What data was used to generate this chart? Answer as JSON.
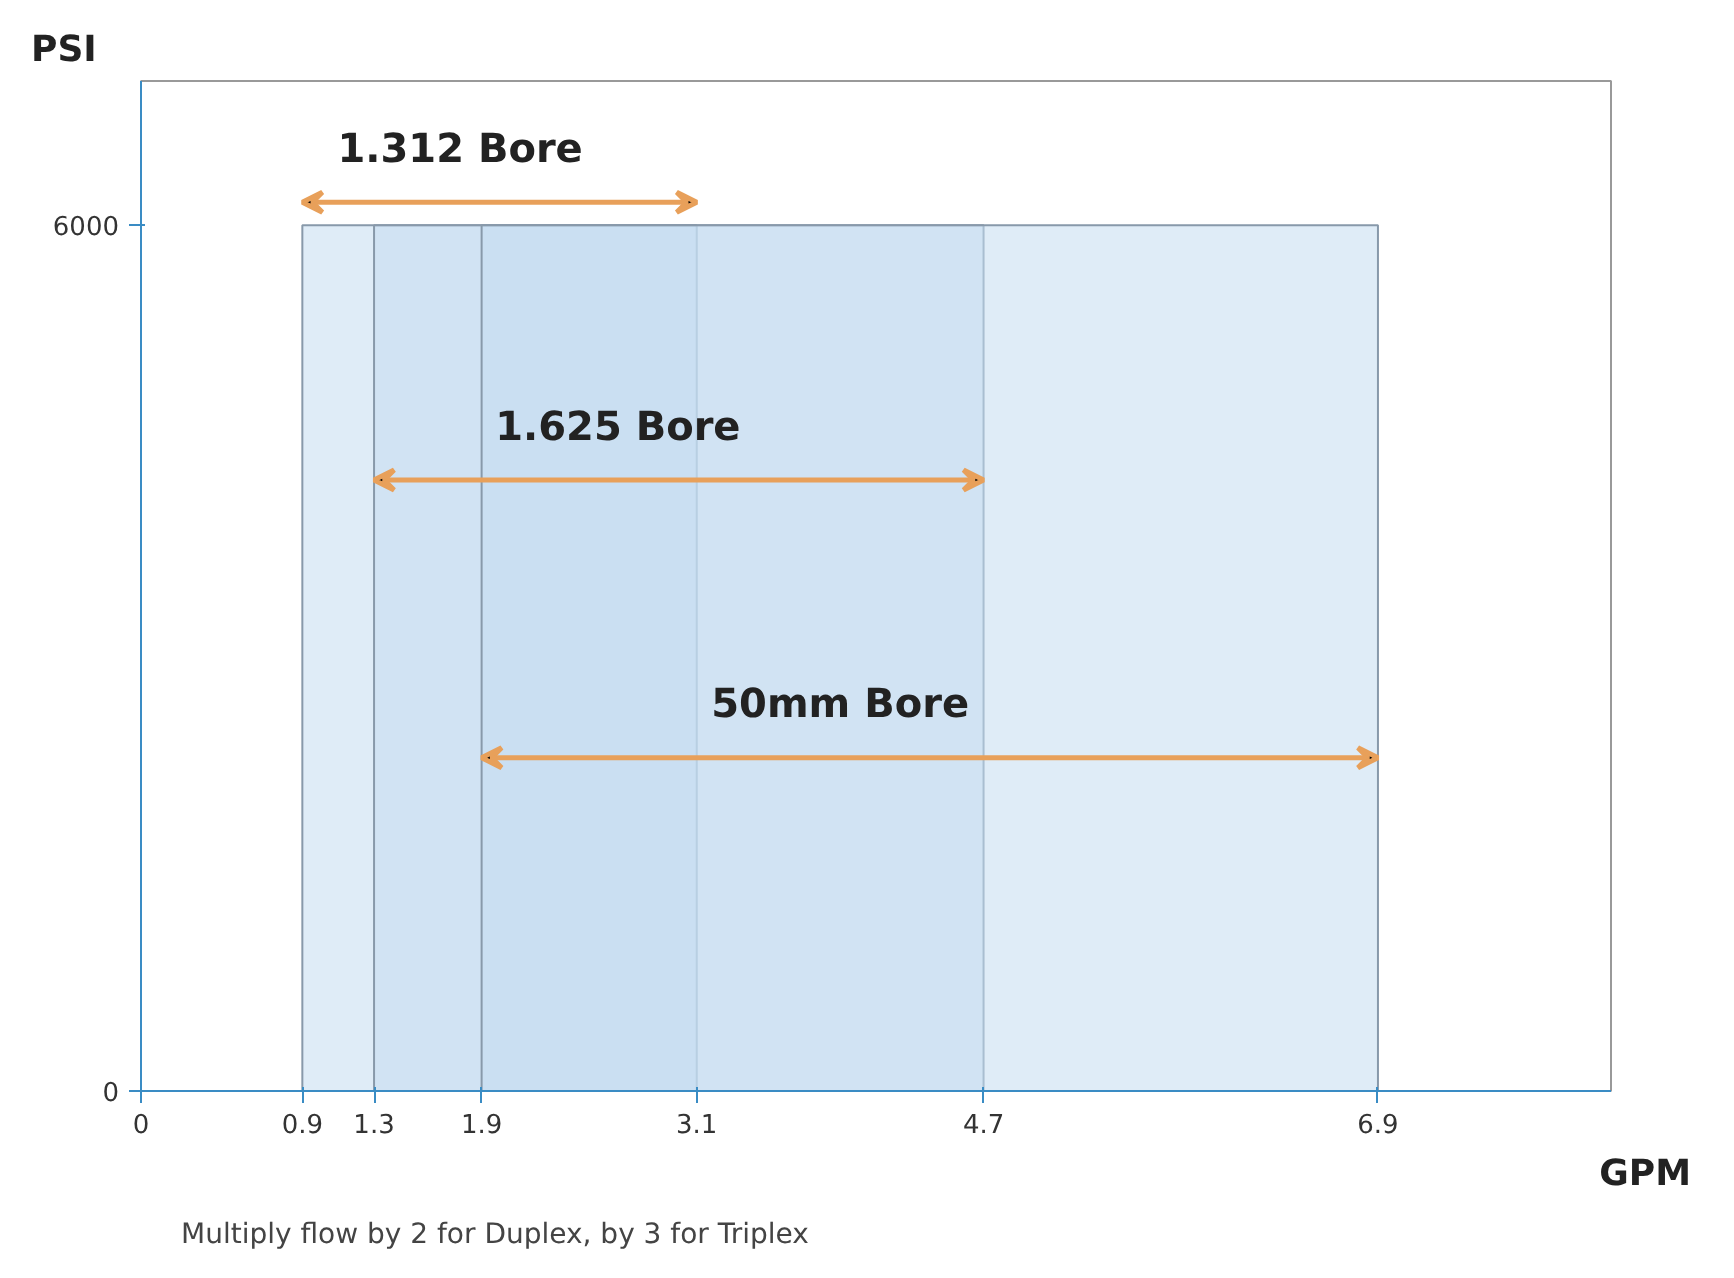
{
  "chart_data": {
    "type": "area",
    "xlabel": "GPM",
    "ylabel": "PSI",
    "xlim": [
      0,
      8.2
    ],
    "ylim": [
      0,
      7000
    ],
    "xticks": [
      0,
      0.9,
      1.3,
      1.9,
      3.1,
      4.7,
      6.9
    ],
    "yticks": [
      0,
      6000
    ],
    "series": [
      {
        "name": "1.312 Bore",
        "color": "#c4dcf0",
        "x": [
          0.9,
          3.1
        ],
        "values": [
          6000,
          6000
        ]
      },
      {
        "name": "1.625 Bore",
        "color": "#c4dcf0",
        "x": [
          1.3,
          4.7
        ],
        "values": [
          6000,
          6000
        ]
      },
      {
        "name": "50mm Bore",
        "color": "#c4dcf0",
        "x": [
          1.9,
          6.9
        ],
        "values": [
          6000,
          6000
        ]
      }
    ],
    "grid": false,
    "annotations": [
      "Multiply flow by 2 for Duplex, by 3 for Triplex"
    ]
  }
}
